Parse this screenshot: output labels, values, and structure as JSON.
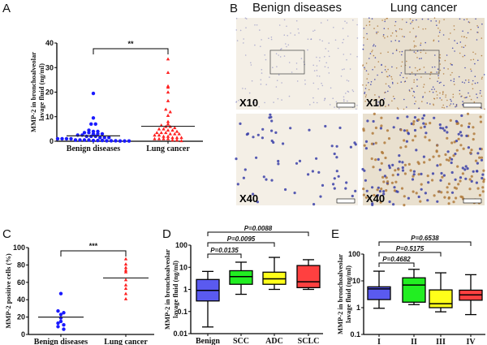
{
  "panel_labels": {
    "a": "A",
    "b": "B",
    "c": "C",
    "d": "D",
    "e": "E"
  },
  "micrographs": {
    "col_titles": [
      "Benign diseases",
      "Lung cancer"
    ],
    "magnifications": [
      "X10",
      "X10",
      "X40",
      "X40"
    ],
    "colors": {
      "benign_bg": "#f4efe6",
      "cancer_bg": "#e9e0cf",
      "nucleus": "#3a3fa8",
      "stain": "#b07a3c"
    }
  },
  "chart_data": [
    {
      "id": "A",
      "type": "scatter",
      "ylabel": [
        "MMP-2 in bronchoalveolar",
        "lavage fluid (ng/ml)"
      ],
      "ylim": [
        0,
        40
      ],
      "yticks": [
        "0",
        "10",
        "20",
        "30",
        "40"
      ],
      "categories": [
        "Benign diseases",
        "Lung cancer"
      ],
      "significance": "**",
      "series": [
        {
          "name": "Benign diseases",
          "marker": "circle",
          "color": "#1a1aff",
          "center_line": 2.2,
          "values": [
            19.5,
            9.5,
            7,
            7,
            4.5,
            4,
            4,
            3.5,
            3.5,
            3,
            3,
            3,
            2.5,
            2.5,
            2,
            2,
            2,
            1.5,
            1.5,
            1.5,
            1,
            1,
            1,
            1,
            0.5,
            0.5,
            0.5,
            0.5,
            0.3,
            0.3,
            0.3,
            0.2,
            0.2,
            0.2,
            0.1,
            0.1,
            0.1
          ]
        },
        {
          "name": "Lung cancer",
          "marker": "triangle",
          "color": "#ff2020",
          "center_line": 6.1,
          "values": [
            33.5,
            28,
            22.5,
            22,
            20,
            16.5,
            13,
            12,
            10.5,
            8,
            7,
            6.5,
            6,
            6,
            5.5,
            5,
            5,
            4.5,
            4.5,
            4,
            3.5,
            3.5,
            3.5,
            3,
            3,
            3,
            2.5,
            2.5,
            2,
            2,
            1.5,
            1.5,
            1.5,
            1,
            1,
            1,
            1,
            0.5,
            0.5,
            0.2
          ]
        }
      ]
    },
    {
      "id": "C",
      "type": "scatter",
      "ylabel": [
        "MMP-2 positive cells (%)"
      ],
      "ylim": [
        0,
        100
      ],
      "yticks": [
        "0",
        "20",
        "40",
        "60",
        "80",
        "100"
      ],
      "categories": [
        "Benign diseases",
        "Lung cancer"
      ],
      "significance": "***",
      "series": [
        {
          "name": "Benign diseases",
          "marker": "circle",
          "color": "#1a1aff",
          "center_line": 20,
          "values": [
            47,
            27,
            25,
            23,
            19,
            15,
            13,
            11,
            9,
            6
          ]
        },
        {
          "name": "Lung cancer",
          "marker": "triangle",
          "color": "#ff2020",
          "center_line": 65,
          "values": [
            87,
            81,
            77,
            74,
            72,
            63,
            57,
            53,
            47,
            41
          ]
        }
      ]
    },
    {
      "id": "D",
      "type": "box",
      "yscale": "log",
      "ylabel": [
        "MMP-2 in bronchoalveolar",
        "lavage fluid (ng/ml)"
      ],
      "ylim": [
        0.01,
        100
      ],
      "yticks": [
        "0.01",
        "0.1",
        "1",
        "10",
        "100"
      ],
      "categories": [
        "Benign",
        "SCC",
        "ADC",
        "SCLC"
      ],
      "boxes": [
        {
          "min": 0.02,
          "q1": 0.3,
          "median": 0.9,
          "q3": 2.8,
          "max": 6.5,
          "color": "#5a5af0"
        },
        {
          "min": 0.6,
          "q1": 1.7,
          "median": 3.8,
          "q3": 7,
          "max": 17,
          "color": "#22ee22"
        },
        {
          "min": 1,
          "q1": 1.7,
          "median": 3,
          "q3": 6,
          "max": 28,
          "color": "#ffff1a"
        },
        {
          "min": 1,
          "q1": 1.2,
          "median": 2.2,
          "q3": 12,
          "max": 22,
          "color": "#ff4040"
        }
      ],
      "comparisons": [
        {
          "from": 0,
          "to": 1,
          "label": "P=0.0135"
        },
        {
          "from": 0,
          "to": 2,
          "label": "P=0.0095"
        },
        {
          "from": 0,
          "to": 3,
          "label": "P=0.0088"
        }
      ]
    },
    {
      "id": "E",
      "type": "box",
      "yscale": "log",
      "ylabel": [
        "MMP-2 in bronchoalveolar",
        "lavage fluid (ng/ml)"
      ],
      "ylim": [
        0.1,
        100
      ],
      "yticks": [
        "0.1",
        "1",
        "10",
        "100"
      ],
      "categories": [
        "I",
        "II",
        "III",
        "IV"
      ],
      "boxes": [
        {
          "min": 0.95,
          "q1": 2,
          "median": 5,
          "q3": 6,
          "max": 23,
          "color": "#5a5af0"
        },
        {
          "min": 1.3,
          "q1": 1.6,
          "median": 7,
          "q3": 13,
          "max": 27,
          "color": "#22ee22"
        },
        {
          "min": 0.7,
          "q1": 1,
          "median": 1.4,
          "q3": 4.6,
          "max": 20,
          "color": "#ffff1a"
        },
        {
          "min": 0.55,
          "q1": 1.9,
          "median": 3,
          "q3": 4.5,
          "max": 17,
          "color": "#ff4040"
        }
      ],
      "comparisons": [
        {
          "from": 0,
          "to": 1,
          "label": "P=0.4682"
        },
        {
          "from": 0,
          "to": 2,
          "label": "P=0.5175"
        },
        {
          "from": 0,
          "to": 3,
          "label": "P=0.6538"
        }
      ]
    }
  ]
}
